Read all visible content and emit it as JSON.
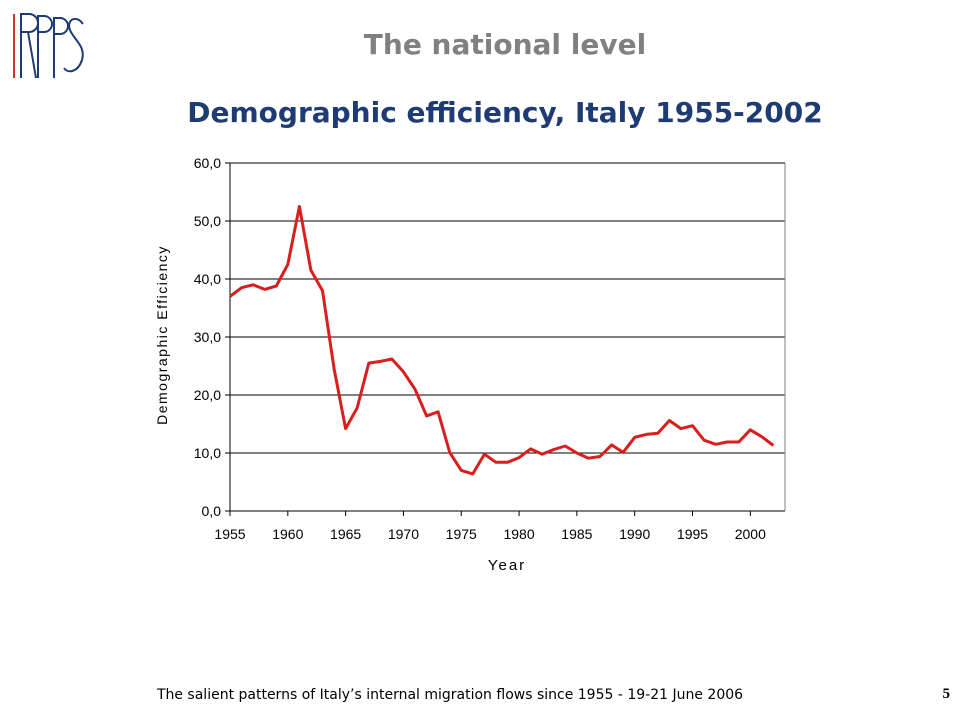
{
  "header": {
    "title": "The national level",
    "subtitle": "Demographic efficiency, Italy 1955-2002"
  },
  "footer": {
    "text": "The salient patterns of Italy’s internal migration flows since 1955 - 19-21 June 2006",
    "page_number": "5"
  },
  "logo": {
    "text": "IRPPS",
    "icon": "irpps-logo-icon"
  },
  "colors": {
    "title": "#808080",
    "subtitle": "#1f3b73",
    "series": "#d91e1e",
    "grid": "#000000"
  },
  "chart_data": {
    "type": "line",
    "title": "",
    "xlabel": "Year",
    "ylabel": "Demographic Efficiency",
    "xlim": [
      1955,
      2003
    ],
    "ylim": [
      0,
      60
    ],
    "x_ticks": [
      "1955",
      "1960",
      "1965",
      "1970",
      "1975",
      "1980",
      "1985",
      "1990",
      "1995",
      "2000"
    ],
    "y_ticks": [
      "0,0",
      "10,0",
      "20,0",
      "30,0",
      "40,0",
      "50,0",
      "60,0"
    ],
    "grid": "horizontal",
    "legend": "none",
    "series": [
      {
        "x": [
          1955,
          1956,
          1957,
          1958,
          1959,
          1960,
          1961,
          1962,
          1963,
          1964,
          1965,
          1966,
          1967,
          1968,
          1969,
          1970,
          1971,
          1972,
          1973,
          1974,
          1975,
          1976,
          1977,
          1978,
          1979,
          1980,
          1981,
          1982,
          1983,
          1984,
          1985,
          1986,
          1987,
          1988,
          1989,
          1990,
          1991,
          1992,
          1993,
          1994,
          1995,
          1996,
          1997,
          1998,
          1999,
          2000,
          2001,
          2002
        ],
        "values": [
          37.0,
          38.5,
          39.0,
          38.2,
          38.8,
          42.5,
          52.5,
          41.5,
          38.0,
          24.5,
          14.2,
          17.8,
          25.5,
          25.8,
          26.2,
          24.0,
          21.0,
          16.4,
          17.1,
          10.1,
          7.0,
          6.4,
          9.8,
          8.4,
          8.4,
          9.2,
          10.7,
          9.8,
          10.6,
          11.2,
          10.0,
          9.1,
          9.4,
          11.4,
          10.1,
          12.7,
          13.2,
          13.4,
          15.6,
          14.2,
          14.7,
          12.2,
          11.5,
          11.9,
          11.9,
          14.0,
          12.8,
          11.3
        ]
      }
    ]
  }
}
